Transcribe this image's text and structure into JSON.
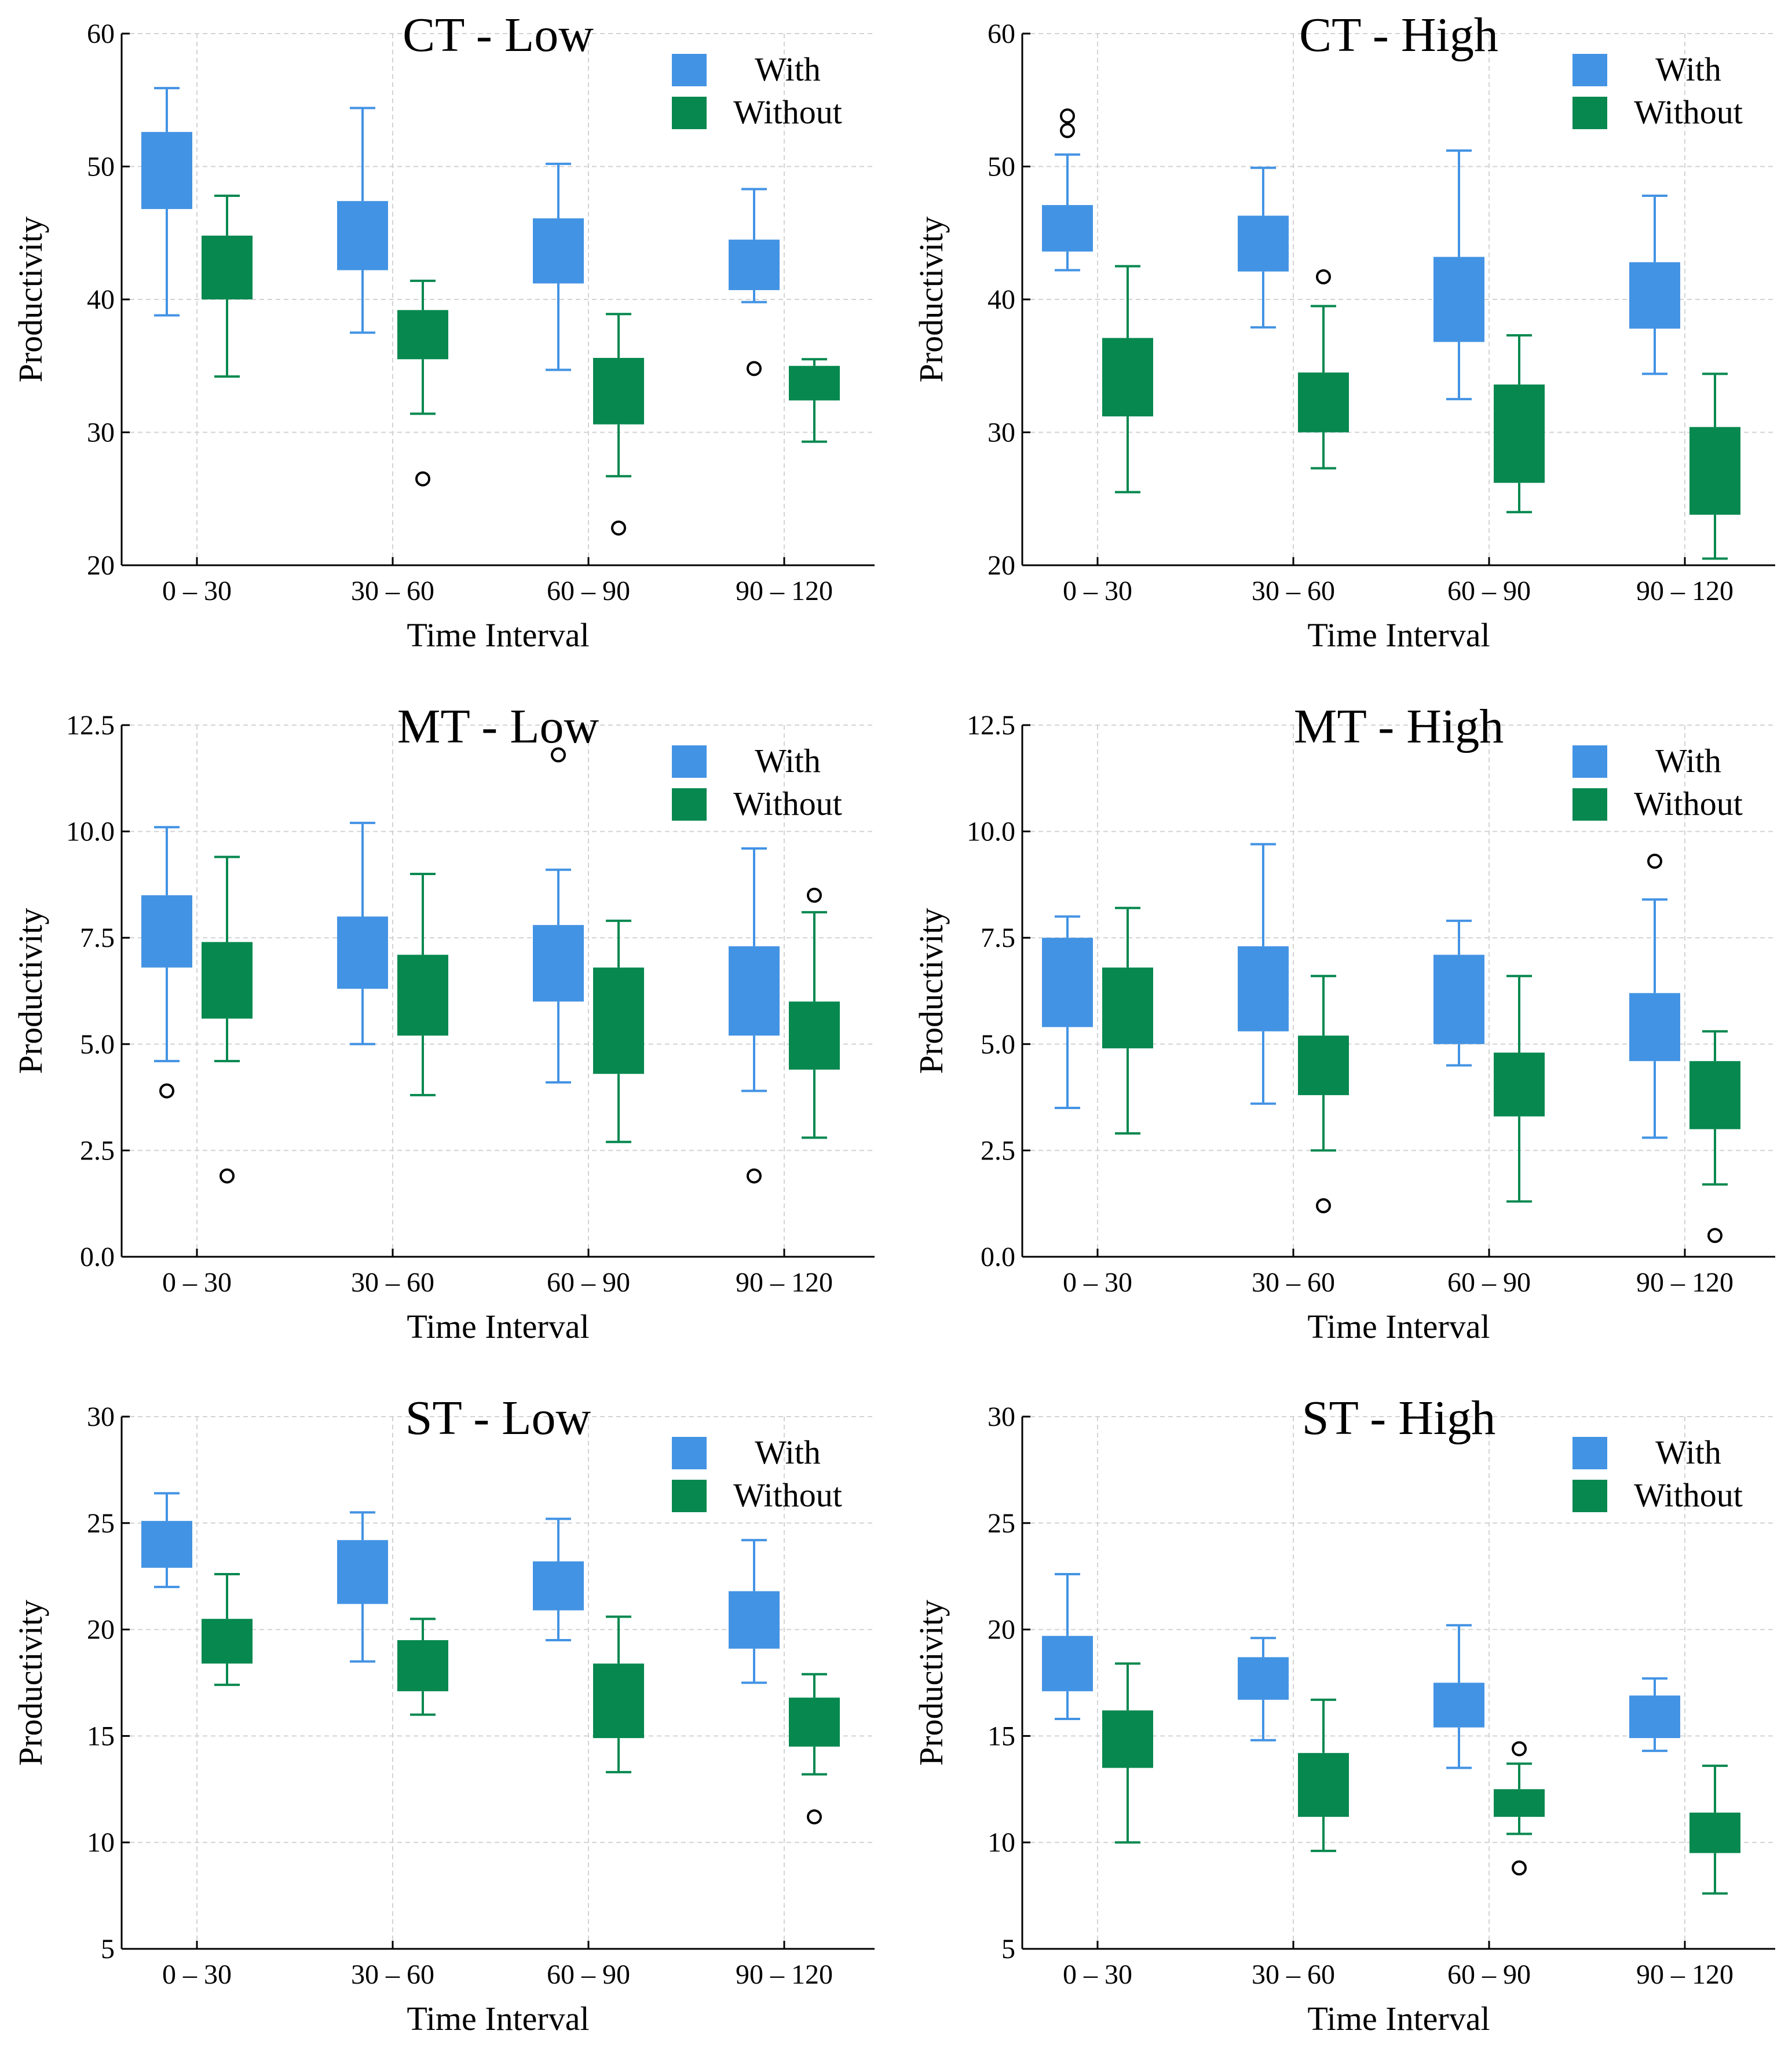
{
  "colors": {
    "with": "#4393E4",
    "without": "#06884F",
    "grid": "#d3d3d3",
    "axis": "#000000"
  },
  "chart_data": [
    {
      "type": "box",
      "title": "CT - Low",
      "xlabel": "Time Interval",
      "ylabel": "Productivity",
      "ylim": [
        20,
        60
      ],
      "yticks": [
        "20",
        "30",
        "40",
        "50",
        "60"
      ],
      "categories": [
        "0 – 30",
        "30 – 60",
        "60 – 90",
        "90 – 120"
      ],
      "legend": {
        "position": "top-right",
        "entries": [
          "With",
          "Without"
        ]
      },
      "series": [
        {
          "name": "With",
          "boxes": [
            {
              "lo": 38.8,
              "q1": 46.8,
              "q3": 52.6,
              "hi": 55.9,
              "outliers": []
            },
            {
              "lo": 37.5,
              "q1": 42.2,
              "q3": 47.4,
              "hi": 54.4,
              "outliers": []
            },
            {
              "lo": 34.7,
              "q1": 41.2,
              "q3": 46.1,
              "hi": 50.2,
              "outliers": []
            },
            {
              "lo": 39.8,
              "q1": 40.7,
              "q3": 44.5,
              "hi": 48.3,
              "outliers": [
                34.8
              ]
            }
          ]
        },
        {
          "name": "Without",
          "boxes": [
            {
              "lo": 34.2,
              "q1": 40.0,
              "q3": 44.8,
              "hi": 47.8,
              "outliers": []
            },
            {
              "lo": 31.4,
              "q1": 35.5,
              "q3": 39.2,
              "hi": 41.4,
              "outliers": [
                26.5
              ]
            },
            {
              "lo": 26.7,
              "q1": 30.6,
              "q3": 35.6,
              "hi": 38.9,
              "outliers": [
                22.8
              ]
            },
            {
              "lo": 29.3,
              "q1": 32.4,
              "q3": 35.0,
              "hi": 35.5,
              "outliers": []
            }
          ]
        }
      ]
    },
    {
      "type": "box",
      "title": "CT - High",
      "xlabel": "Time Interval",
      "ylabel": "Productivity",
      "ylim": [
        20,
        60
      ],
      "yticks": [
        "20",
        "30",
        "40",
        "50",
        "60"
      ],
      "categories": [
        "0 – 30",
        "30 – 60",
        "60 – 90",
        "90 – 120"
      ],
      "legend": {
        "position": "top-right",
        "entries": [
          "With",
          "Without"
        ]
      },
      "series": [
        {
          "name": "With",
          "boxes": [
            {
              "lo": 42.2,
              "q1": 43.6,
              "q3": 47.1,
              "hi": 50.9,
              "outliers": [
                53.8,
                52.7
              ]
            },
            {
              "lo": 37.9,
              "q1": 42.1,
              "q3": 46.3,
              "hi": 49.9,
              "outliers": []
            },
            {
              "lo": 32.5,
              "q1": 36.8,
              "q3": 43.2,
              "hi": 51.2,
              "outliers": []
            },
            {
              "lo": 34.4,
              "q1": 37.8,
              "q3": 42.8,
              "hi": 47.8,
              "outliers": []
            }
          ]
        },
        {
          "name": "Without",
          "boxes": [
            {
              "lo": 25.5,
              "q1": 31.2,
              "q3": 37.1,
              "hi": 42.5,
              "outliers": []
            },
            {
              "lo": 27.3,
              "q1": 30.0,
              "q3": 34.5,
              "hi": 39.5,
              "outliers": [
                41.7
              ]
            },
            {
              "lo": 24.0,
              "q1": 26.2,
              "q3": 33.6,
              "hi": 37.3,
              "outliers": []
            },
            {
              "lo": 20.5,
              "q1": 23.8,
              "q3": 30.4,
              "hi": 34.4,
              "outliers": []
            }
          ]
        }
      ]
    },
    {
      "type": "box",
      "title": "MT - Low",
      "xlabel": "Time Interval",
      "ylabel": "Productivity",
      "ylim": [
        0,
        12.5
      ],
      "yticks": [
        "0.0",
        "2.5",
        "5.0",
        "7.5",
        "10.0",
        "12.5"
      ],
      "categories": [
        "0 – 30",
        "30 – 60",
        "60 – 90",
        "90 – 120"
      ],
      "legend": {
        "position": "top-right",
        "entries": [
          "With",
          "Without"
        ]
      },
      "series": [
        {
          "name": "With",
          "boxes": [
            {
              "lo": 4.6,
              "q1": 6.8,
              "q3": 8.5,
              "hi": 10.1,
              "outliers": [
                3.9
              ]
            },
            {
              "lo": 5.0,
              "q1": 6.3,
              "q3": 8.0,
              "hi": 10.2,
              "outliers": []
            },
            {
              "lo": 4.1,
              "q1": 6.0,
              "q3": 7.8,
              "hi": 9.1,
              "outliers": [
                11.8
              ]
            },
            {
              "lo": 3.9,
              "q1": 5.2,
              "q3": 7.3,
              "hi": 9.6,
              "outliers": [
                1.9
              ]
            }
          ]
        },
        {
          "name": "Without",
          "boxes": [
            {
              "lo": 4.6,
              "q1": 5.6,
              "q3": 7.4,
              "hi": 9.4,
              "outliers": [
                1.9
              ]
            },
            {
              "lo": 3.8,
              "q1": 5.2,
              "q3": 7.1,
              "hi": 9.0,
              "outliers": []
            },
            {
              "lo": 2.7,
              "q1": 4.3,
              "q3": 6.8,
              "hi": 7.9,
              "outliers": []
            },
            {
              "lo": 2.8,
              "q1": 4.4,
              "q3": 6.0,
              "hi": 8.1,
              "outliers": [
                8.5
              ]
            }
          ]
        }
      ]
    },
    {
      "type": "box",
      "title": "MT - High",
      "xlabel": "Time Interval",
      "ylabel": "Productivity",
      "ylim": [
        0,
        12.5
      ],
      "yticks": [
        "0.0",
        "2.5",
        "5.0",
        "7.5",
        "10.0",
        "12.5"
      ],
      "categories": [
        "0 – 30",
        "30 – 60",
        "60 – 90",
        "90 – 120"
      ],
      "legend": {
        "position": "top-right",
        "entries": [
          "With",
          "Without"
        ]
      },
      "series": [
        {
          "name": "With",
          "boxes": [
            {
              "lo": 3.5,
              "q1": 5.4,
              "q3": 7.5,
              "hi": 8.0,
              "outliers": []
            },
            {
              "lo": 3.6,
              "q1": 5.3,
              "q3": 7.3,
              "hi": 9.7,
              "outliers": []
            },
            {
              "lo": 4.5,
              "q1": 5.0,
              "q3": 7.1,
              "hi": 7.9,
              "outliers": []
            },
            {
              "lo": 2.8,
              "q1": 4.6,
              "q3": 6.2,
              "hi": 8.4,
              "outliers": [
                9.3
              ]
            }
          ]
        },
        {
          "name": "Without",
          "boxes": [
            {
              "lo": 2.9,
              "q1": 4.9,
              "q3": 6.8,
              "hi": 8.2,
              "outliers": []
            },
            {
              "lo": 2.5,
              "q1": 3.8,
              "q3": 5.2,
              "hi": 6.6,
              "outliers": [
                1.2
              ]
            },
            {
              "lo": 1.3,
              "q1": 3.3,
              "q3": 4.8,
              "hi": 6.6,
              "outliers": []
            },
            {
              "lo": 1.7,
              "q1": 3.0,
              "q3": 4.6,
              "hi": 5.3,
              "outliers": [
                0.5
              ]
            }
          ]
        }
      ]
    },
    {
      "type": "box",
      "title": "ST - Low",
      "xlabel": "Time Interval",
      "ylabel": "Productivity",
      "ylim": [
        5,
        30
      ],
      "yticks": [
        "5",
        "10",
        "15",
        "20",
        "25",
        "30"
      ],
      "categories": [
        "0 – 30",
        "30 – 60",
        "60 – 90",
        "90 – 120"
      ],
      "legend": {
        "position": "top-right",
        "entries": [
          "With",
          "Without"
        ]
      },
      "series": [
        {
          "name": "With",
          "boxes": [
            {
              "lo": 22.0,
              "q1": 22.9,
              "q3": 25.1,
              "hi": 26.4,
              "outliers": []
            },
            {
              "lo": 18.5,
              "q1": 21.2,
              "q3": 24.2,
              "hi": 25.5,
              "outliers": []
            },
            {
              "lo": 19.5,
              "q1": 20.9,
              "q3": 23.2,
              "hi": 25.2,
              "outliers": []
            },
            {
              "lo": 17.5,
              "q1": 19.1,
              "q3": 21.8,
              "hi": 24.2,
              "outliers": []
            }
          ]
        },
        {
          "name": "Without",
          "boxes": [
            {
              "lo": 17.4,
              "q1": 18.4,
              "q3": 20.5,
              "hi": 22.6,
              "outliers": []
            },
            {
              "lo": 16.0,
              "q1": 17.1,
              "q3": 19.5,
              "hi": 20.5,
              "outliers": []
            },
            {
              "lo": 13.3,
              "q1": 14.9,
              "q3": 18.4,
              "hi": 20.6,
              "outliers": []
            },
            {
              "lo": 13.2,
              "q1": 14.5,
              "q3": 16.8,
              "hi": 17.9,
              "outliers": [
                11.2
              ]
            }
          ]
        }
      ]
    },
    {
      "type": "box",
      "title": "ST - High",
      "xlabel": "Time Interval",
      "ylabel": "Productivity",
      "ylim": [
        5,
        30
      ],
      "yticks": [
        "5",
        "10",
        "15",
        "20",
        "25",
        "30"
      ],
      "categories": [
        "0 – 30",
        "30 – 60",
        "60 – 90",
        "90 – 120"
      ],
      "legend": {
        "position": "top-right",
        "entries": [
          "With",
          "Without"
        ]
      },
      "series": [
        {
          "name": "With",
          "boxes": [
            {
              "lo": 15.8,
              "q1": 17.1,
              "q3": 19.7,
              "hi": 22.6,
              "outliers": []
            },
            {
              "lo": 14.8,
              "q1": 16.7,
              "q3": 18.7,
              "hi": 19.6,
              "outliers": []
            },
            {
              "lo": 13.5,
              "q1": 15.4,
              "q3": 17.5,
              "hi": 20.2,
              "outliers": []
            },
            {
              "lo": 14.3,
              "q1": 14.9,
              "q3": 16.9,
              "hi": 17.7,
              "outliers": []
            }
          ]
        },
        {
          "name": "Without",
          "boxes": [
            {
              "lo": 10.0,
              "q1": 13.5,
              "q3": 16.2,
              "hi": 18.4,
              "outliers": []
            },
            {
              "lo": 9.6,
              "q1": 11.2,
              "q3": 14.2,
              "hi": 16.7,
              "outliers": []
            },
            {
              "lo": 10.4,
              "q1": 11.2,
              "q3": 12.5,
              "hi": 13.7,
              "outliers": [
                14.4,
                8.8
              ]
            },
            {
              "lo": 7.6,
              "q1": 9.5,
              "q3": 11.4,
              "hi": 13.6,
              "outliers": []
            }
          ]
        }
      ]
    }
  ]
}
